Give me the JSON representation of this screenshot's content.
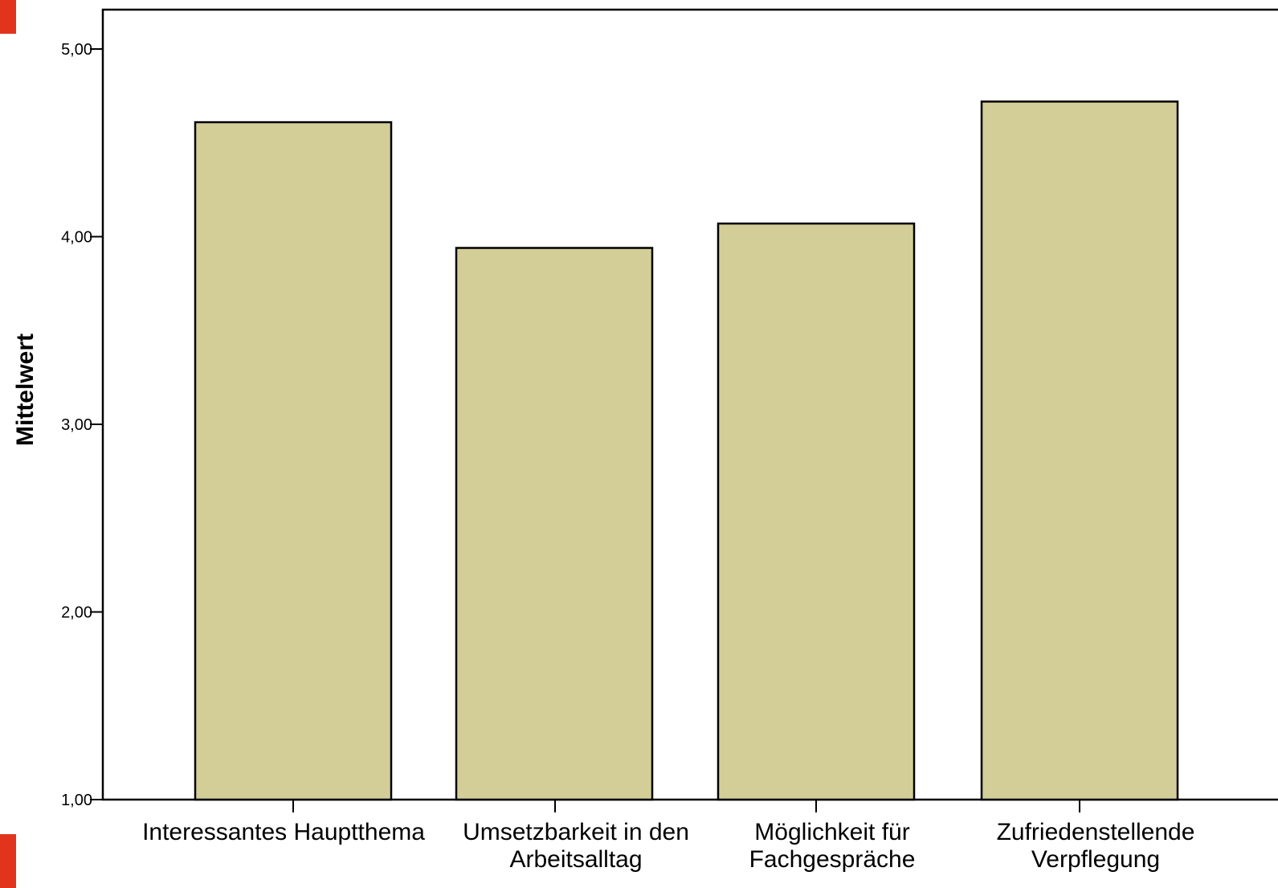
{
  "chart_data": {
    "type": "bar",
    "categories": [
      [
        "Interessantes Hauptthema"
      ],
      [
        "Umsetzbarkeit in den",
        "Arbeitsalltag"
      ],
      [
        "Möglichkeit für",
        "Fachgespräche"
      ],
      [
        "Zufriedenstellende",
        "Verpflegung"
      ]
    ],
    "values": [
      4.61,
      3.94,
      4.07,
      4.72
    ],
    "ylabel": "Mittelwert",
    "ylim": [
      1,
      5
    ],
    "yticks": [
      1,
      2,
      3,
      4,
      5
    ],
    "ytick_labels": [
      "1,00",
      "2,00",
      "3,00",
      "4,00",
      "5,00"
    ],
    "grid": false,
    "colors": {
      "bar_fill": "#d3ce98",
      "bar_stroke": "#000000",
      "axis": "#000000",
      "side_marker": "#e2341d"
    }
  }
}
